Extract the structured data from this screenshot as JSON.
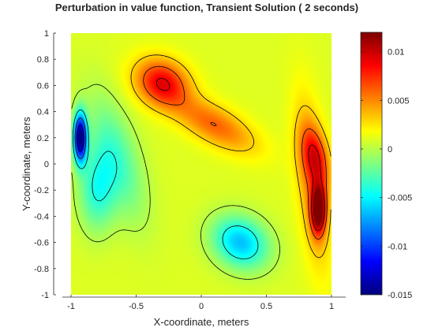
{
  "chart_data": {
    "type": "heatmap",
    "subtype": "filled-contour",
    "title": "Perturbation in value function, Transient Solution ( 2 seconds)",
    "xlabel": "X-coordinate, meters",
    "ylabel": "Y-coordinate, meters",
    "xlim": [
      -1,
      1
    ],
    "ylim": [
      -1,
      1
    ],
    "xticks": [
      "-1",
      "-0.5",
      "0",
      "0.5",
      "1"
    ],
    "yticks": [
      "-1",
      "-0.8",
      "-0.6",
      "-0.4",
      "-0.2",
      "0",
      "0.2",
      "0.4",
      "0.6",
      "0.8",
      "1"
    ],
    "colorbar": {
      "clim": [
        -0.015,
        0.012
      ],
      "ticks": [
        "-0.015",
        "-0.01",
        "-0.005",
        "0",
        "0.005",
        "0.01"
      ],
      "colormap": "jet",
      "location": "right"
    },
    "extrema": [
      {
        "label": "max",
        "x": 0.9,
        "y": -0.35,
        "value": 0.012
      },
      {
        "label": "local max",
        "x": -0.3,
        "y": 0.62,
        "value": 0.009
      },
      {
        "label": "local max",
        "x": 0.88,
        "y": 0.05,
        "value": 0.008
      },
      {
        "label": "min",
        "x": -0.93,
        "y": 0.2,
        "value": -0.015
      },
      {
        "label": "local min",
        "x": -0.8,
        "y": -0.2,
        "value": -0.006
      },
      {
        "label": "local min",
        "x": 0.3,
        "y": -0.6,
        "value": -0.0065
      }
    ],
    "background_value": 0.001,
    "contour_lines": true,
    "grid": false
  }
}
